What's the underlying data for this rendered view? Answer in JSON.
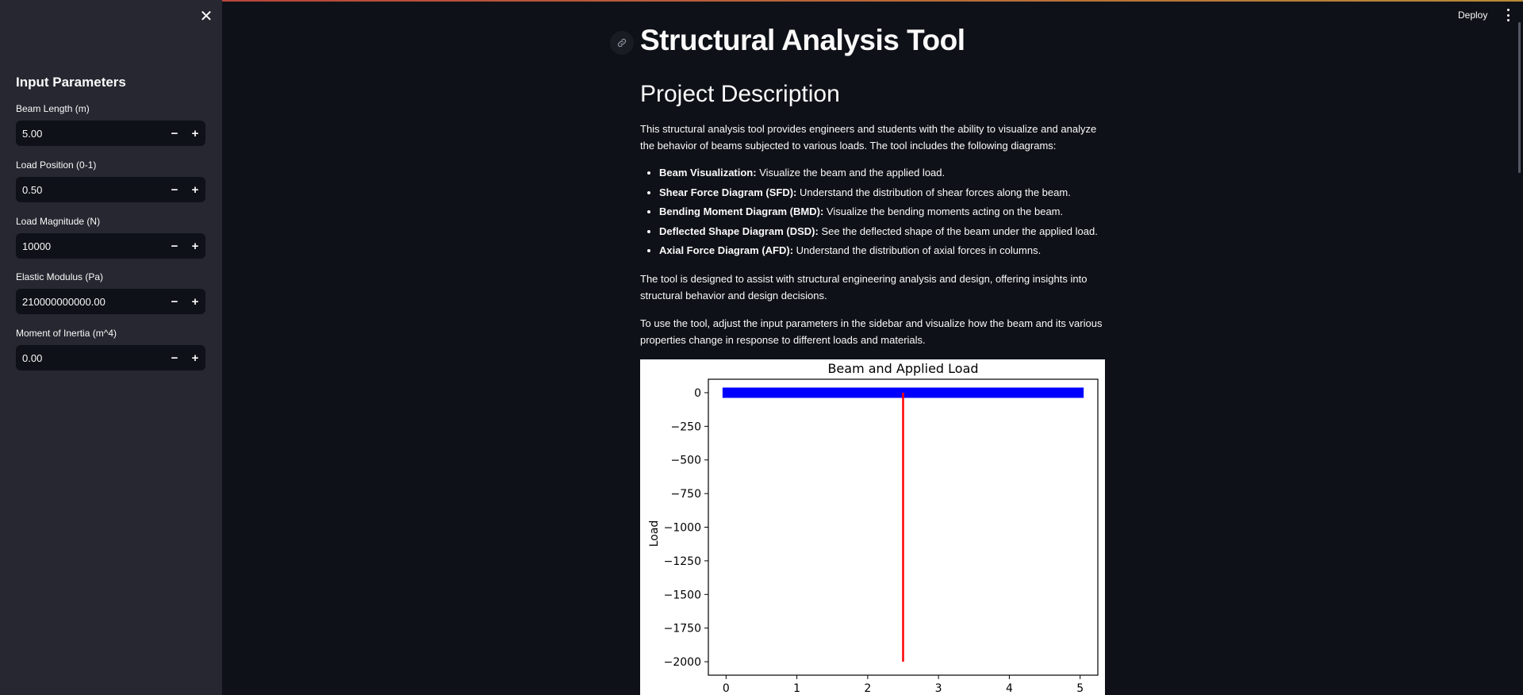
{
  "sidebar": {
    "heading": "Input Parameters",
    "fields": [
      {
        "label": "Beam Length (m)",
        "value": "5.00"
      },
      {
        "label": "Load Position (0-1)",
        "value": "0.50"
      },
      {
        "label": "Load Magnitude (N)",
        "value": "10000"
      },
      {
        "label": "Elastic Modulus (Pa)",
        "value": "210000000000.00"
      },
      {
        "label": "Moment of Inertia (m^4)",
        "value": "0.00"
      }
    ],
    "minus": "−",
    "plus": "+",
    "close_icon": "close-icon"
  },
  "header": {
    "deploy_label": "Deploy"
  },
  "main": {
    "title": "Structural Analysis Tool",
    "section_title": "Project Description",
    "intro": "This structural analysis tool provides engineers and students with the ability to visualize and analyze the behavior of beams subjected to various loads. The tool includes the following diagrams:",
    "items": [
      {
        "term": "Beam Visualization:",
        "desc": " Visualize the beam and the applied load."
      },
      {
        "term": "Shear Force Diagram (SFD):",
        "desc": " Understand the distribution of shear forces along the beam."
      },
      {
        "term": "Bending Moment Diagram (BMD):",
        "desc": " Visualize the bending moments acting on the beam."
      },
      {
        "term": "Deflected Shape Diagram (DSD):",
        "desc": " See the deflected shape of the beam under the applied load."
      },
      {
        "term": "Axial Force Diagram (AFD):",
        "desc": " Understand the distribution of axial forces in columns."
      }
    ],
    "para2": "The tool is designed to assist with structural engineering analysis and design, offering insights into structural behavior and design decisions.",
    "para3": "To use the tool, adjust the input parameters in the sidebar and visualize how the beam and its various properties change in response to different loads and materials."
  },
  "chart_data": {
    "type": "line",
    "title": "Beam and Applied Load",
    "xlabel": "",
    "ylabel": "Load",
    "xlim": [
      -0.25,
      5.25
    ],
    "ylim": [
      -2100,
      100
    ],
    "xticks": [
      0,
      1,
      2,
      3,
      4,
      5
    ],
    "yticks": [
      0,
      -250,
      -500,
      -750,
      -1000,
      -1250,
      -1500,
      -1750,
      -2000
    ],
    "ytick_labels": [
      "0",
      "−250",
      "−500",
      "−750",
      "−1000",
      "−1250",
      "−1500",
      "−1750",
      "−2000"
    ],
    "series": [
      {
        "x": [
          -0.05,
          5.05
        ],
        "y": [
          0,
          0
        ],
        "color": "#0000ff"
      },
      {
        "x": [
          2.5,
          2.5
        ],
        "y": [
          0,
          -2000
        ],
        "color": "#ff0000"
      }
    ],
    "grid": false
  }
}
